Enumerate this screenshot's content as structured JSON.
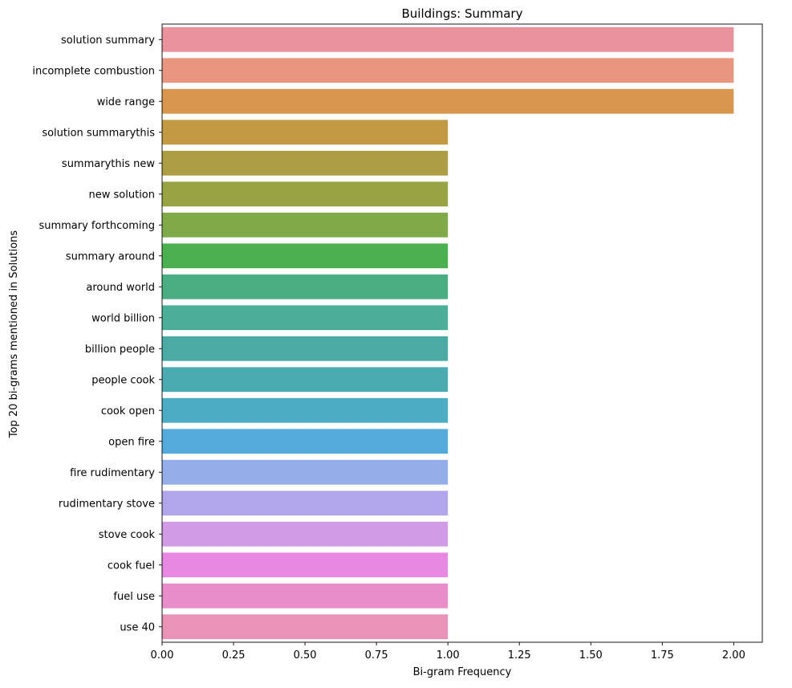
{
  "chart_data": {
    "type": "bar",
    "orientation": "horizontal",
    "title": "Buildings: Summary",
    "xlabel": "Bi-gram Frequency",
    "ylabel": "Top 20 bi-grams mentioned in Solutions",
    "xlim": [
      0,
      2.1
    ],
    "x_ticks": [
      0.0,
      0.25,
      0.5,
      0.75,
      1.0,
      1.25,
      1.5,
      1.75,
      2.0
    ],
    "x_tick_labels": [
      "0.00",
      "0.25",
      "0.50",
      "0.75",
      "1.00",
      "1.25",
      "1.50",
      "1.75",
      "2.00"
    ],
    "grid": false,
    "legend": "none",
    "categories": [
      "solution summary",
      "incomplete combustion",
      "wide range",
      "solution summarythis",
      "summarythis new",
      "new solution",
      "summary forthcoming",
      "summary around",
      "around world",
      "world billion",
      "billion people",
      "people cook",
      "cook open",
      "open fire",
      "fire rudimentary",
      "rudimentary stove",
      "stove cook",
      "cook fuel",
      "fuel use",
      "use 40"
    ],
    "values": [
      2,
      2,
      2,
      1,
      1,
      1,
      1,
      1,
      1,
      1,
      1,
      1,
      1,
      1,
      1,
      1,
      1,
      1,
      1,
      1
    ],
    "colors": [
      "#eb929f",
      "#e89680",
      "#d8964e",
      "#c19a43",
      "#ad9d44",
      "#98a444",
      "#80aa48",
      "#4bb150",
      "#4bae83",
      "#4aae98",
      "#4aaaa4",
      "#4aacb1",
      "#4bacc4",
      "#54aadb",
      "#93aee8",
      "#b2a6ea",
      "#d29be6",
      "#e789e2",
      "#e88dc9",
      "#e893b7"
    ]
  }
}
